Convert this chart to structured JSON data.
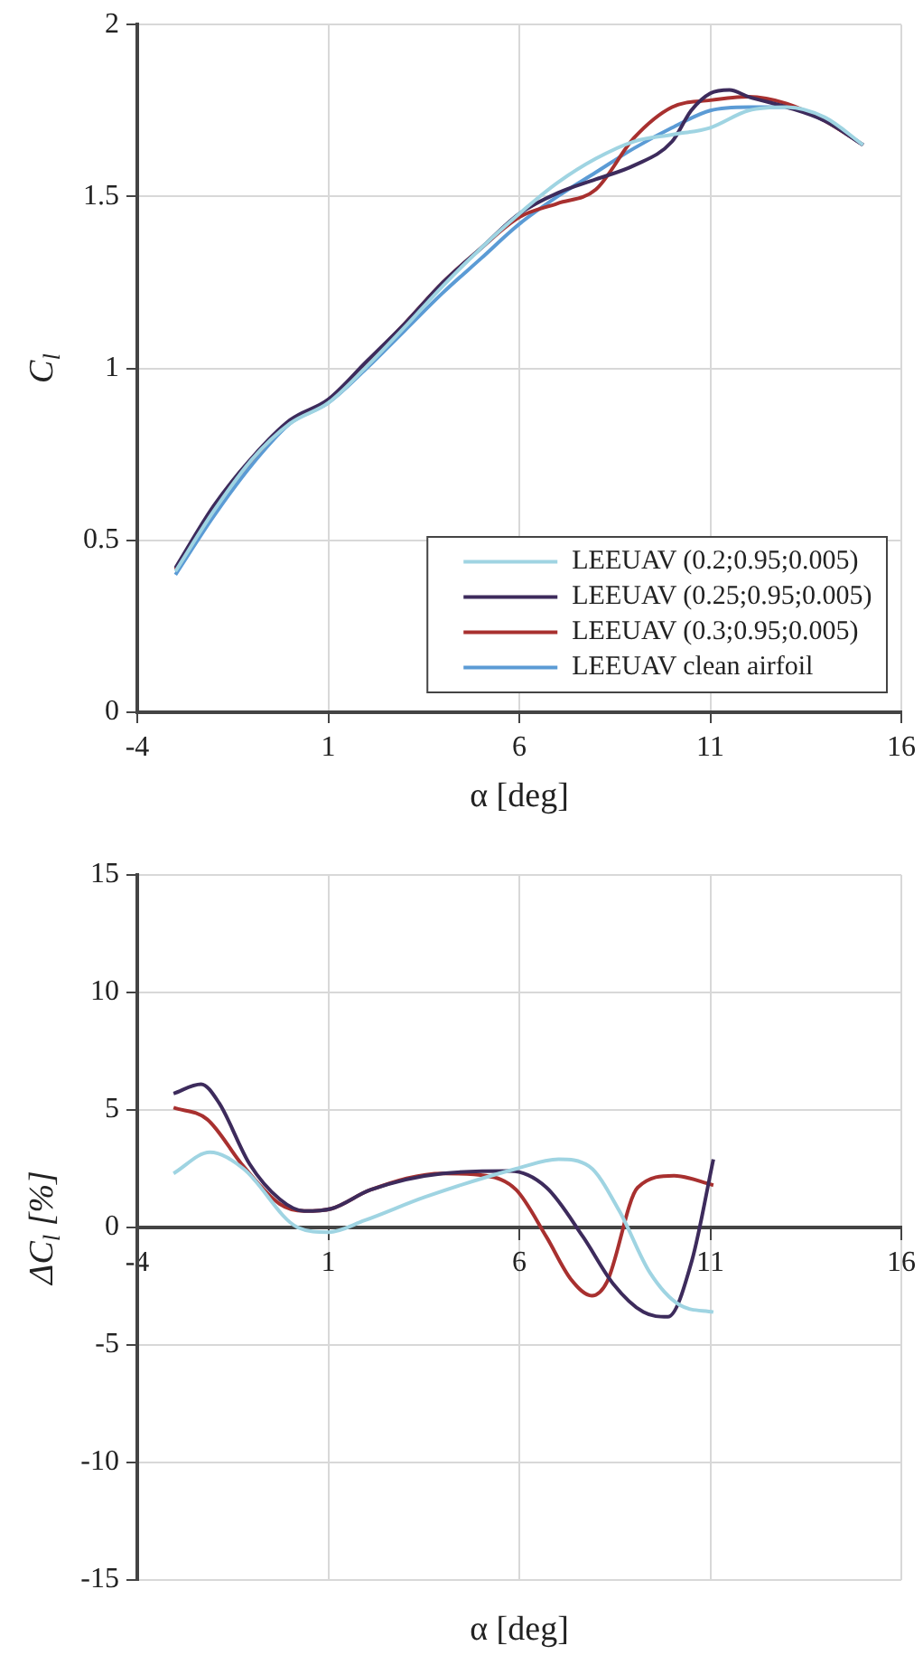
{
  "chart_data": [
    {
      "type": "line",
      "xlabel": "α [deg]",
      "ylabel": "C$_{l}$",
      "xlim": [
        -4,
        16
      ],
      "xticks": [
        -4,
        1,
        6,
        11,
        16
      ],
      "ylim": [
        0,
        2
      ],
      "yticks": [
        0,
        0.5,
        1,
        1.5,
        2
      ],
      "grid": true,
      "legend": "bottom right",
      "series": [
        {
          "name": "LEEUAV (0.2;0.95;0.005)",
          "color": "#9fd4e2",
          "x": [
            -3,
            -2,
            -1,
            0,
            1,
            2,
            3,
            4,
            5,
            6,
            7,
            8,
            9,
            10,
            11,
            12,
            13,
            14,
            15
          ],
          "values": [
            0.41,
            0.585,
            0.735,
            0.84,
            0.9,
            1.005,
            1.12,
            1.24,
            1.35,
            1.45,
            1.54,
            1.61,
            1.66,
            1.68,
            1.7,
            1.75,
            1.76,
            1.73,
            1.65
          ]
        },
        {
          "name": "LEEUAV (0.25;0.95;0.005)",
          "color": "#3d2b5c",
          "x": [
            -3,
            -2,
            -1,
            0,
            1,
            2,
            3,
            4,
            5,
            6,
            7,
            8,
            9,
            10,
            10.5,
            11,
            11.5,
            12,
            13,
            14,
            15
          ],
          "values": [
            0.42,
            0.6,
            0.74,
            0.85,
            0.91,
            1.02,
            1.13,
            1.25,
            1.35,
            1.45,
            1.51,
            1.55,
            1.59,
            1.66,
            1.75,
            1.8,
            1.81,
            1.79,
            1.76,
            1.72,
            1.65
          ]
        },
        {
          "name": "LEEUAV (0.3;0.95;0.005)",
          "color": "#a8302f",
          "x": [
            -3,
            -2,
            -1,
            0,
            1,
            2,
            3,
            4,
            5,
            6,
            7,
            8,
            9,
            10,
            11,
            12,
            13,
            14,
            15
          ],
          "values": [
            0.415,
            0.59,
            0.735,
            0.845,
            0.905,
            1.015,
            1.13,
            1.25,
            1.35,
            1.44,
            1.48,
            1.52,
            1.67,
            1.76,
            1.78,
            1.79,
            1.77,
            1.72,
            1.65
          ]
        },
        {
          "name": "LEEUAV clean airfoil",
          "color": "#5b9bd5",
          "x": [
            -3,
            -2,
            -1,
            0,
            1,
            2,
            3,
            4,
            5,
            6,
            7,
            8,
            9,
            10,
            11,
            12,
            13,
            14,
            15
          ],
          "values": [
            0.4,
            0.57,
            0.72,
            0.84,
            0.9,
            1.0,
            1.11,
            1.22,
            1.32,
            1.42,
            1.5,
            1.57,
            1.64,
            1.7,
            1.75,
            1.76,
            1.76,
            1.72,
            1.65
          ]
        }
      ]
    },
    {
      "type": "line",
      "xlabel": "α [deg]",
      "ylabel": "ΔC$_{l}$ [%]",
      "xlim": [
        -4,
        16
      ],
      "xticks": [
        -4,
        1,
        6,
        11,
        16
      ],
      "ylim": [
        -15,
        15
      ],
      "yticks": [
        -15,
        -10,
        -5,
        0,
        5,
        10,
        15
      ],
      "grid": true,
      "series": [
        {
          "color": "#9fd4e2",
          "x": [
            -3.05,
            -2.1,
            -1.22,
            0.2,
            1.0,
            1.95,
            3.54,
            5.92,
            7.03,
            7.83,
            8.62,
            9.41,
            10.2,
            11.08
          ],
          "values": [
            2.3,
            3.2,
            2.5,
            0.0,
            -0.2,
            0.3,
            1.3,
            2.5,
            2.9,
            2.6,
            0.7,
            -1.9,
            -3.3,
            -3.6
          ]
        },
        {
          "color": "#3d2b5c",
          "x": [
            -3.05,
            -2.33,
            -1.86,
            -1.06,
            -0.27,
            0.37,
            1.08,
            2.1,
            4.0,
            5.76,
            6.71,
            7.67,
            8.46,
            9.25,
            9.89,
            10.52,
            11.08
          ],
          "values": [
            5.7,
            6.1,
            5.3,
            2.7,
            1.2,
            0.7,
            0.8,
            1.6,
            2.3,
            2.4,
            1.7,
            -0.4,
            -2.4,
            -3.6,
            -3.8,
            -1.4,
            2.9
          ]
        },
        {
          "color": "#a8302f",
          "x": [
            -3.05,
            -2.17,
            -1.22,
            -0.27,
            0.37,
            1.08,
            2.1,
            4.0,
            5.13,
            5.92,
            6.71,
            7.35,
            7.9,
            8.3,
            9.1,
            10.05,
            11.08
          ],
          "values": [
            5.1,
            4.6,
            2.6,
            1.0,
            0.7,
            0.8,
            1.6,
            2.3,
            2.2,
            1.6,
            -0.4,
            -2.2,
            -2.9,
            -2.3,
            1.7,
            2.2,
            1.8
          ]
        }
      ]
    }
  ]
}
